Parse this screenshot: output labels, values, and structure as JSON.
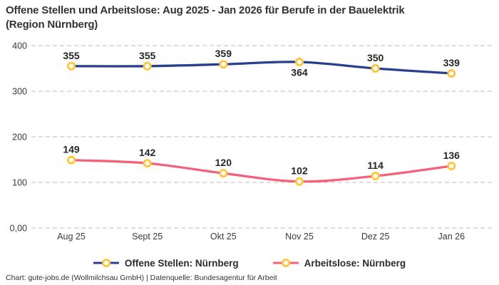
{
  "title": "Offene Stellen und Arbeitslose: Aug 2025 - Jan 2026 für Berufe in der Bauelektrik\n(Region Nürnberg)",
  "footer": "Chart: gute-jobs.de (Wollmilchsau GmbH) | Datenquelle: Bundesagentur für Arbeit",
  "colors": {
    "grid": "#C9C9C9",
    "axis_text": "#3A3A3A",
    "value_label_text": "#262626",
    "title_text": "#333333",
    "series_blue": "#28408F",
    "series_pink": "#F5617B",
    "marker_ring": "#FFC53D",
    "marker_fill": "#FFFFFF"
  },
  "chart_data": {
    "type": "line",
    "title": "Offene Stellen und Arbeitslose: Aug 2025 - Jan 2026 für Berufe in der Bauelektrik (Region Nürnberg)",
    "categories": [
      "Aug 25",
      "Sept 25",
      "Okt 25",
      "Nov 25",
      "Dez 25",
      "Jan 26"
    ],
    "series": [
      {
        "name": "Offene Stellen: Nürnberg",
        "values": [
          355,
          355,
          359,
          364,
          350,
          339
        ],
        "color": "#28408F",
        "labels_below_indices": [
          3
        ]
      },
      {
        "name": "Arbeitslose: Nürnberg",
        "values": [
          149,
          142,
          120,
          102,
          114,
          136
        ],
        "color": "#F5617B",
        "labels_below_indices": []
      }
    ],
    "marker": {
      "fill": "#FFFFFF",
      "stroke": "#FFC53D"
    },
    "y_ticks": [
      {
        "value": 0,
        "label": "0,00"
      },
      {
        "value": 100,
        "label": "100"
      },
      {
        "value": 200,
        "label": "200"
      },
      {
        "value": 300,
        "label": "300"
      },
      {
        "value": 400,
        "label": "400"
      }
    ],
    "ylim": [
      0,
      400
    ],
    "grid": "horizontal-dashed",
    "legend_position": "bottom-center",
    "xlabel": "",
    "ylabel": ""
  }
}
